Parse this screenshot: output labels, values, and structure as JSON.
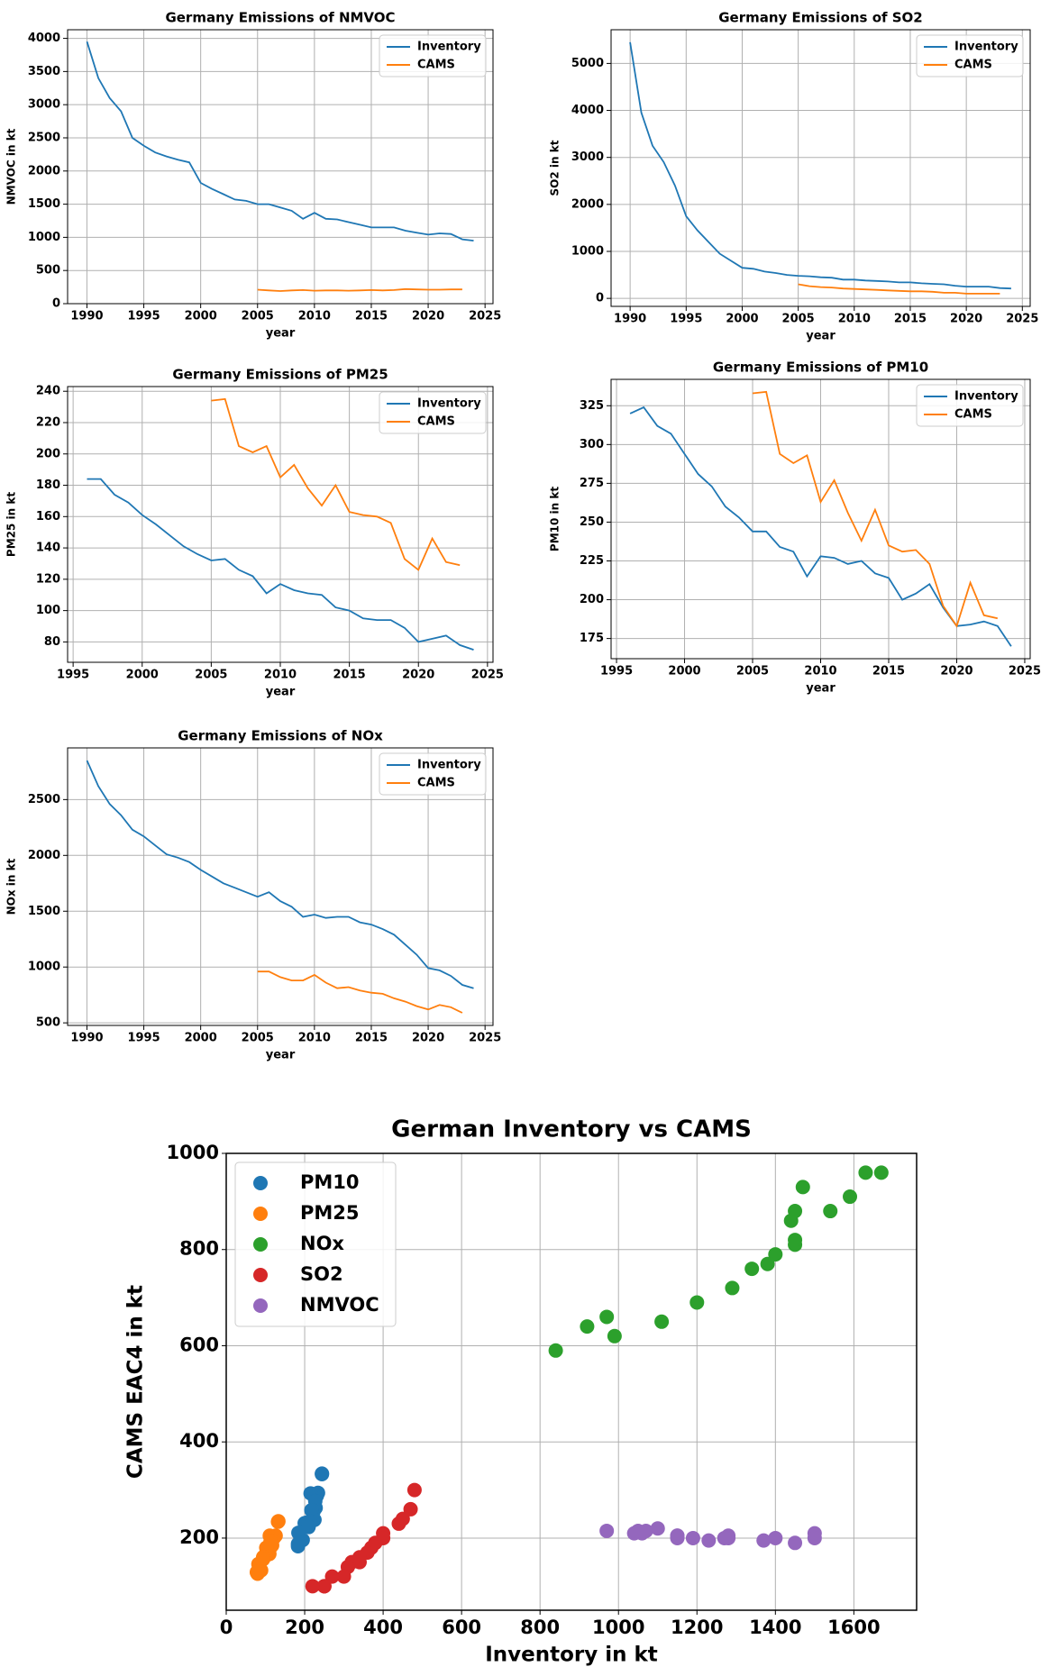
{
  "chart_data": [
    {
      "type": "line",
      "title": "Germany Emissions of NMVOC",
      "xlabel": "year",
      "ylabel": "NMVOC in kt",
      "xlim": [
        1988.3,
        2025.7
      ],
      "ylim": [
        0,
        4130
      ],
      "xticks": [
        1990,
        1995,
        2000,
        2005,
        2010,
        2015,
        2020,
        2025
      ],
      "yticks": [
        0,
        500,
        1000,
        1500,
        2000,
        2500,
        3000,
        3500,
        4000
      ],
      "grid": true,
      "legend": "upper right",
      "series": [
        {
          "name": "Inventory",
          "color": "#1f77b4",
          "x": [
            1990,
            1991,
            1992,
            1993,
            1994,
            1995,
            1996,
            1997,
            1998,
            1999,
            2000,
            2001,
            2002,
            2003,
            2004,
            2005,
            2006,
            2007,
            2008,
            2009,
            2010,
            2011,
            2012,
            2013,
            2014,
            2015,
            2016,
            2017,
            2018,
            2019,
            2020,
            2021,
            2022,
            2023,
            2024
          ],
          "values": [
            3950,
            3400,
            3100,
            2900,
            2500,
            2380,
            2280,
            2220,
            2170,
            2130,
            1820,
            1730,
            1650,
            1570,
            1550,
            1500,
            1500,
            1450,
            1400,
            1280,
            1370,
            1280,
            1270,
            1230,
            1190,
            1150,
            1150,
            1150,
            1100,
            1070,
            1040,
            1060,
            1050,
            970,
            950
          ]
        },
        {
          "name": "CAMS",
          "color": "#ff7f0e",
          "x": [
            2005,
            2006,
            2007,
            2008,
            2009,
            2010,
            2011,
            2012,
            2013,
            2014,
            2015,
            2016,
            2017,
            2018,
            2019,
            2020,
            2021,
            2022,
            2023
          ],
          "values": [
            210,
            200,
            190,
            200,
            205,
            195,
            200,
            200,
            195,
            200,
            205,
            200,
            205,
            220,
            215,
            210,
            210,
            215,
            215
          ]
        }
      ]
    },
    {
      "type": "line",
      "title": "Germany Emissions of SO2",
      "xlabel": "year",
      "ylabel": "SO2 in kt",
      "xlim": [
        1988.3,
        2025.7
      ],
      "ylim": [
        -170,
        5717
      ],
      "xticks": [
        1990,
        1995,
        2000,
        2005,
        2010,
        2015,
        2020,
        2025
      ],
      "yticks": [
        0,
        1000,
        2000,
        3000,
        4000,
        5000
      ],
      "grid": true,
      "legend": "upper right",
      "series": [
        {
          "name": "Inventory",
          "color": "#1f77b4",
          "x": [
            1990,
            1991,
            1992,
            1993,
            1994,
            1995,
            1996,
            1997,
            1998,
            1999,
            2000,
            2001,
            2002,
            2003,
            2004,
            2005,
            2006,
            2007,
            2008,
            2009,
            2010,
            2011,
            2012,
            2013,
            2014,
            2015,
            2016,
            2017,
            2018,
            2019,
            2020,
            2021,
            2022,
            2023,
            2024
          ],
          "values": [
            5450,
            3950,
            3250,
            2900,
            2400,
            1750,
            1450,
            1200,
            950,
            800,
            650,
            630,
            570,
            540,
            500,
            480,
            470,
            450,
            440,
            400,
            400,
            380,
            370,
            360,
            340,
            340,
            320,
            310,
            300,
            270,
            250,
            250,
            250,
            220,
            210
          ]
        },
        {
          "name": "CAMS",
          "color": "#ff7f0e",
          "x": [
            2005,
            2006,
            2007,
            2008,
            2009,
            2010,
            2011,
            2012,
            2013,
            2014,
            2015,
            2016,
            2017,
            2018,
            2019,
            2020,
            2021,
            2022,
            2023
          ],
          "values": [
            300,
            260,
            240,
            230,
            210,
            200,
            190,
            180,
            170,
            160,
            150,
            150,
            140,
            120,
            120,
            100,
            100,
            100,
            100
          ]
        }
      ]
    },
    {
      "type": "line",
      "title": "Germany Emissions of PM25",
      "xlabel": "year",
      "ylabel": "PM25 in kt",
      "xlim": [
        1994.6,
        2025.4
      ],
      "ylim": [
        67,
        243
      ],
      "xticks": [
        1995,
        2000,
        2005,
        2010,
        2015,
        2020,
        2025
      ],
      "yticks": [
        80,
        100,
        120,
        140,
        160,
        180,
        200,
        220,
        240
      ],
      "grid": true,
      "legend": "upper right",
      "series": [
        {
          "name": "Inventory",
          "color": "#1f77b4",
          "x": [
            1996,
            1997,
            1998,
            1999,
            2000,
            2001,
            2002,
            2003,
            2004,
            2005,
            2006,
            2007,
            2008,
            2009,
            2010,
            2011,
            2012,
            2013,
            2014,
            2015,
            2016,
            2017,
            2018,
            2019,
            2020,
            2021,
            2022,
            2023,
            2024
          ],
          "values": [
            184,
            184,
            174,
            169,
            161,
            155,
            148,
            141,
            136,
            132,
            133,
            126,
            122,
            111,
            117,
            113,
            111,
            110,
            102,
            100,
            95,
            94,
            94,
            89,
            80,
            82,
            84,
            78,
            75
          ]
        },
        {
          "name": "CAMS",
          "color": "#ff7f0e",
          "x": [
            2005,
            2006,
            2007,
            2008,
            2009,
            2010,
            2011,
            2012,
            2013,
            2014,
            2015,
            2016,
            2017,
            2018,
            2019,
            2020,
            2021,
            2022,
            2023
          ],
          "values": [
            234,
            235,
            205,
            201,
            205,
            185,
            193,
            178,
            167,
            180,
            163,
            161,
            160,
            156,
            133,
            126,
            146,
            131,
            129
          ]
        }
      ]
    },
    {
      "type": "line",
      "title": "Germany Emissions of PM10",
      "xlabel": "year",
      "ylabel": "PM10 in kt",
      "xlim": [
        1994.6,
        2025.4
      ],
      "ylim": [
        162,
        342
      ],
      "xticks": [
        1995,
        2000,
        2005,
        2010,
        2015,
        2020,
        2025
      ],
      "yticks": [
        175,
        200,
        225,
        250,
        275,
        300,
        325
      ],
      "grid": true,
      "legend": "upper right",
      "series": [
        {
          "name": "Inventory",
          "color": "#1f77b4",
          "x": [
            1996,
            1997,
            1998,
            1999,
            2000,
            2001,
            2002,
            2003,
            2004,
            2005,
            2006,
            2007,
            2008,
            2009,
            2010,
            2011,
            2012,
            2013,
            2014,
            2015,
            2016,
            2017,
            2018,
            2019,
            2020,
            2021,
            2022,
            2023,
            2024
          ],
          "values": [
            320,
            324,
            312,
            307,
            294,
            281,
            273,
            260,
            253,
            244,
            244,
            234,
            231,
            215,
            228,
            227,
            223,
            225,
            217,
            214,
            200,
            204,
            210,
            195,
            183,
            184,
            186,
            183,
            170
          ]
        },
        {
          "name": "CAMS",
          "color": "#ff7f0e",
          "x": [
            2005,
            2006,
            2007,
            2008,
            2009,
            2010,
            2011,
            2012,
            2013,
            2014,
            2015,
            2016,
            2017,
            2018,
            2019,
            2020,
            2021,
            2022,
            2023
          ],
          "values": [
            333,
            334,
            294,
            288,
            293,
            263,
            277,
            256,
            238,
            258,
            235,
            231,
            232,
            223,
            196,
            183,
            211,
            190,
            188
          ]
        }
      ]
    },
    {
      "type": "line",
      "title": "Germany Emissions of NOx",
      "xlabel": "year",
      "ylabel": "NOx in kt",
      "xlim": [
        1988.3,
        2025.7
      ],
      "ylim": [
        477,
        2963
      ],
      "xticks": [
        1990,
        1995,
        2000,
        2005,
        2010,
        2015,
        2020,
        2025
      ],
      "yticks": [
        500,
        1000,
        1500,
        2000,
        2500
      ],
      "grid": true,
      "legend": "upper right",
      "series": [
        {
          "name": "Inventory",
          "color": "#1f77b4",
          "x": [
            1990,
            1991,
            1992,
            1993,
            1994,
            1995,
            1996,
            1997,
            1998,
            1999,
            2000,
            2001,
            2002,
            2003,
            2004,
            2005,
            2006,
            2007,
            2008,
            2009,
            2010,
            2011,
            2012,
            2013,
            2014,
            2015,
            2016,
            2017,
            2018,
            2019,
            2020,
            2021,
            2022,
            2023,
            2024
          ],
          "values": [
            2850,
            2620,
            2460,
            2360,
            2230,
            2170,
            2090,
            2010,
            1980,
            1940,
            1870,
            1810,
            1750,
            1710,
            1670,
            1630,
            1670,
            1590,
            1540,
            1450,
            1470,
            1440,
            1450,
            1450,
            1400,
            1380,
            1340,
            1290,
            1200,
            1110,
            990,
            970,
            920,
            840,
            810
          ]
        },
        {
          "name": "CAMS",
          "color": "#ff7f0e",
          "x": [
            2005,
            2006,
            2007,
            2008,
            2009,
            2010,
            2011,
            2012,
            2013,
            2014,
            2015,
            2016,
            2017,
            2018,
            2019,
            2020,
            2021,
            2022,
            2023
          ],
          "values": [
            960,
            960,
            910,
            880,
            880,
            930,
            860,
            810,
            820,
            790,
            770,
            760,
            720,
            690,
            650,
            620,
            660,
            640,
            590
          ]
        }
      ]
    },
    {
      "type": "scatter",
      "title": "German Inventory vs CAMS",
      "xlabel": "Inventory in kt",
      "ylabel": "CAMS EAC4 in kt",
      "xlim": [
        0,
        1760
      ],
      "ylim": [
        50,
        1000
      ],
      "xticks": [
        0,
        200,
        400,
        600,
        800,
        1000,
        1200,
        1400,
        1600
      ],
      "yticks": [
        200,
        400,
        600,
        800,
        1000
      ],
      "grid": true,
      "legend": "upper left",
      "series": [
        {
          "name": "PM10",
          "color": "#1f77b4",
          "x": [
            244,
            244,
            234,
            231,
            215,
            228,
            227,
            223,
            225,
            217,
            214,
            200,
            204,
            210,
            195,
            183,
            184,
            186,
            183
          ],
          "values": [
            333,
            334,
            294,
            288,
            293,
            263,
            277,
            256,
            238,
            258,
            235,
            231,
            232,
            223,
            196,
            183,
            211,
            190,
            188
          ]
        },
        {
          "name": "PM25",
          "color": "#ff7f0e",
          "x": [
            132,
            133,
            126,
            122,
            111,
            117,
            113,
            111,
            110,
            102,
            100,
            95,
            94,
            94,
            89,
            80,
            82,
            84,
            78
          ],
          "values": [
            234,
            235,
            205,
            201,
            205,
            185,
            193,
            178,
            167,
            180,
            163,
            161,
            160,
            156,
            133,
            126,
            146,
            131,
            129
          ]
        },
        {
          "name": "NOx",
          "color": "#2ca02c",
          "x": [
            1630,
            1670,
            1590,
            1540,
            1450,
            1470,
            1440,
            1450,
            1450,
            1400,
            1380,
            1340,
            1290,
            1200,
            1110,
            990,
            970,
            920,
            840
          ],
          "values": [
            960,
            960,
            910,
            880,
            880,
            930,
            860,
            810,
            820,
            790,
            770,
            760,
            720,
            690,
            650,
            620,
            660,
            640,
            590
          ]
        },
        {
          "name": "SO2",
          "color": "#d62728",
          "x": [
            480,
            470,
            450,
            440,
            400,
            400,
            380,
            370,
            360,
            340,
            340,
            320,
            310,
            300,
            270,
            250,
            250,
            250,
            220
          ],
          "values": [
            300,
            260,
            240,
            230,
            210,
            200,
            190,
            180,
            170,
            160,
            150,
            150,
            140,
            120,
            120,
            100,
            100,
            100,
            100
          ]
        },
        {
          "name": "NMVOC",
          "color": "#9467bd",
          "x": [
            1500,
            1500,
            1450,
            1400,
            1280,
            1370,
            1280,
            1270,
            1230,
            1190,
            1150,
            1150,
            1150,
            1100,
            1070,
            1040,
            1060,
            1050,
            970
          ],
          "values": [
            210,
            200,
            190,
            200,
            205,
            195,
            200,
            200,
            195,
            200,
            205,
            200,
            205,
            220,
            215,
            210,
            210,
            215,
            215
          ]
        }
      ]
    }
  ]
}
